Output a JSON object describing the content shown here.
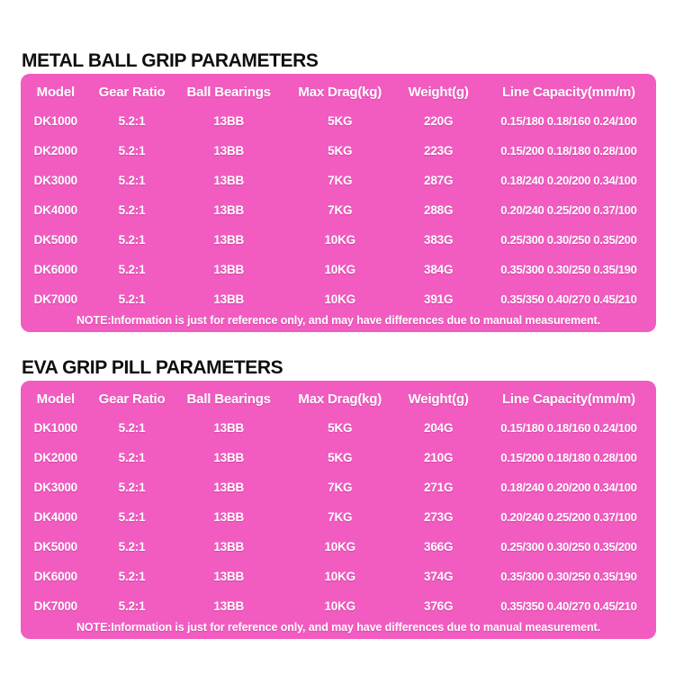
{
  "colors": {
    "background": "#ffffff",
    "panel": "#f25cc0",
    "title_text": "#0f0f0f",
    "table_text": "#ffffff"
  },
  "tables": [
    {
      "title": "METAL BALL GRIP PARAMETERS",
      "headers": [
        "Model",
        "Gear Ratio",
        "Ball Bearings",
        "Max Drag(kg)",
        "Weight(g)",
        "Line Capacity(mm/m)"
      ],
      "rows": [
        [
          "DK1000",
          "5.2:1",
          "13BB",
          "5KG",
          "220G",
          "0.15/180 0.18/160 0.24/100"
        ],
        [
          "DK2000",
          "5.2:1",
          "13BB",
          "5KG",
          "223G",
          "0.15/200 0.18/180 0.28/100"
        ],
        [
          "DK3000",
          "5.2:1",
          "13BB",
          "7KG",
          "287G",
          "0.18/240 0.20/200 0.34/100"
        ],
        [
          "DK4000",
          "5.2:1",
          "13BB",
          "7KG",
          "288G",
          "0.20/240 0.25/200 0.37/100"
        ],
        [
          "DK5000",
          "5.2:1",
          "13BB",
          "10KG",
          "383G",
          "0.25/300 0.30/250 0.35/200"
        ],
        [
          "DK6000",
          "5.2:1",
          "13BB",
          "10KG",
          "384G",
          "0.35/300 0.30/250 0.35/190"
        ],
        [
          "DK7000",
          "5.2:1",
          "13BB",
          "10KG",
          "391G",
          "0.35/350 0.40/270 0.45/210"
        ]
      ],
      "note": "NOTE:Information is just for reference only, and may have differences due to manual measurement."
    },
    {
      "title": "EVA GRIP PILL PARAMETERS",
      "headers": [
        "Model",
        "Gear Ratio",
        "Ball Bearings",
        "Max Drag(kg)",
        "Weight(g)",
        "Line Capacity(mm/m)"
      ],
      "rows": [
        [
          "DK1000",
          "5.2:1",
          "13BB",
          "5KG",
          "204G",
          "0.15/180 0.18/160 0.24/100"
        ],
        [
          "DK2000",
          "5.2:1",
          "13BB",
          "5KG",
          "210G",
          "0.15/200 0.18/180 0.28/100"
        ],
        [
          "DK3000",
          "5.2:1",
          "13BB",
          "7KG",
          "271G",
          "0.18/240 0.20/200 0.34/100"
        ],
        [
          "DK4000",
          "5.2:1",
          "13BB",
          "7KG",
          "273G",
          "0.20/240 0.25/200 0.37/100"
        ],
        [
          "DK5000",
          "5.2:1",
          "13BB",
          "10KG",
          "366G",
          "0.25/300 0.30/250 0.35/200"
        ],
        [
          "DK6000",
          "5.2:1",
          "13BB",
          "10KG",
          "374G",
          "0.35/300 0.30/250 0.35/190"
        ],
        [
          "DK7000",
          "5.2:1",
          "13BB",
          "10KG",
          "376G",
          "0.35/350 0.40/270 0.45/210"
        ]
      ],
      "note": "NOTE:Information is just for reference only, and may have differences due to manual measurement."
    }
  ]
}
